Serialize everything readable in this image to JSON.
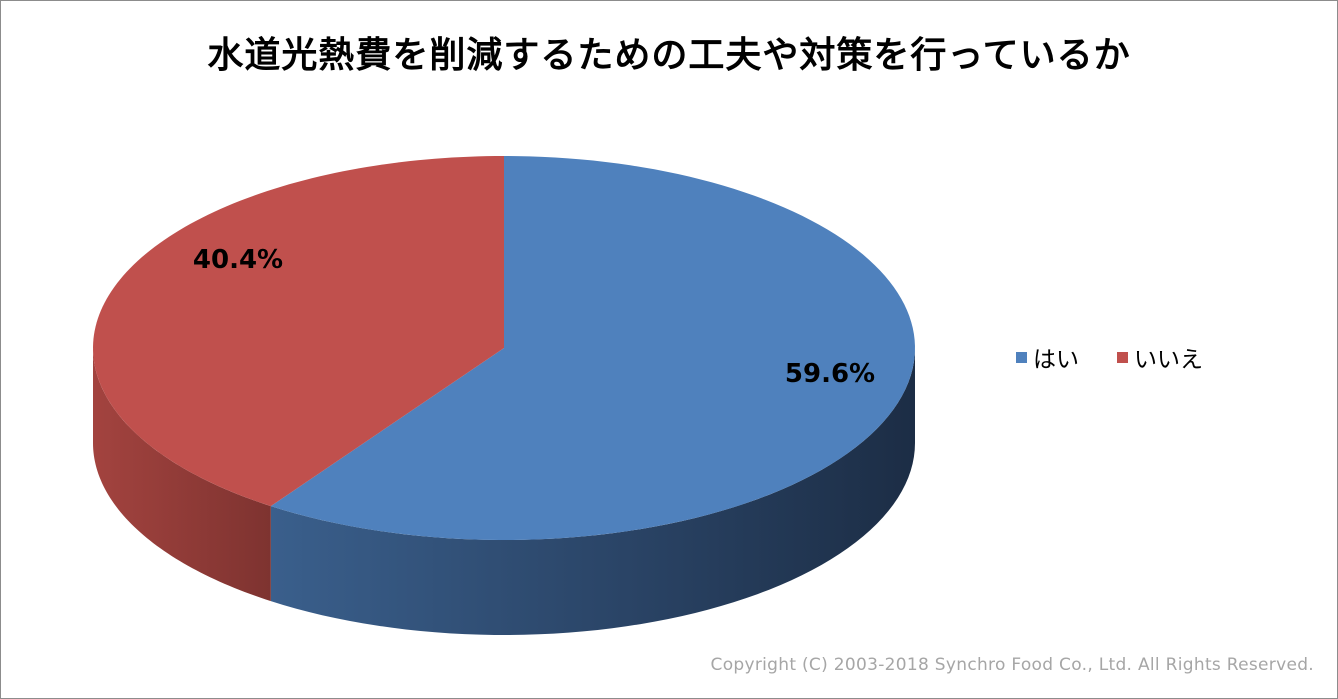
{
  "chart_data": {
    "type": "pie",
    "title": "水道光熱費を削減するための工夫や対策を行っているか",
    "categories": [
      "はい",
      "いいえ"
    ],
    "values": [
      59.6,
      40.4
    ],
    "data_labels": [
      "59.6%",
      "40.4%"
    ],
    "colors": [
      "#4f81bd",
      "#c0504d"
    ],
    "legend_position": "right",
    "style": "3d"
  },
  "footer": {
    "copyright": "Copyright (C) 2003-2018  Synchro Food Co., Ltd. All Rights Reserved."
  }
}
